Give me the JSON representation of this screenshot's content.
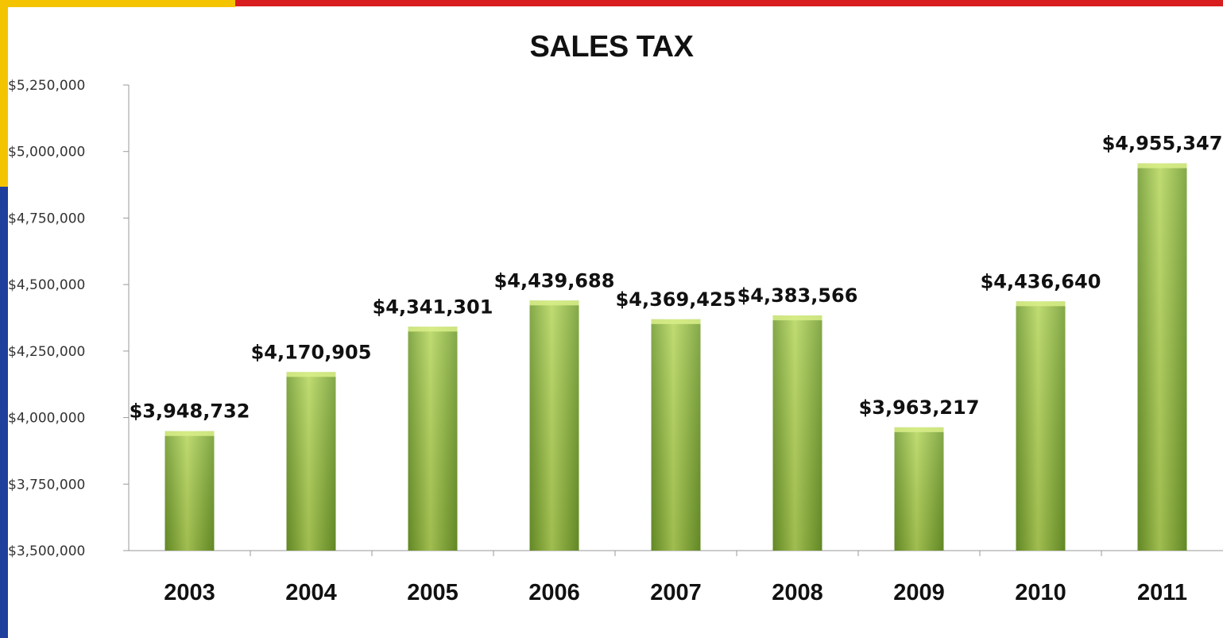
{
  "colors": {
    "frame_yellow": "#f5c400",
    "frame_red": "#d81e1e",
    "frame_blue": "#1f3f9c",
    "bar_light": "#b5d65a",
    "bar_dark": "#6f9a2a",
    "axis": "#9a9a9a"
  },
  "chart_data": {
    "type": "bar",
    "title": "SALES TAX",
    "xlabel": "",
    "ylabel": "",
    "categories": [
      "2003",
      "2004",
      "2005",
      "2006",
      "2007",
      "2008",
      "2009",
      "2010",
      "2011"
    ],
    "values": [
      3948732,
      4170905,
      4341301,
      4439688,
      4369425,
      4383566,
      3963217,
      4436640,
      4955347
    ],
    "data_labels": [
      "$3,948,732",
      "$4,170,905",
      "$4,341,301",
      "$4,439,688",
      "$4,369,425",
      "$4,383,566",
      "$3,963,217",
      "$4,436,640",
      "$4,955,347"
    ],
    "y_ticks": [
      3500000,
      3750000,
      4000000,
      4250000,
      4500000,
      4750000,
      5000000,
      5250000
    ],
    "y_tick_labels": [
      "$3,500,000",
      "$3,750,000",
      "$4,000,000",
      "$4,250,000",
      "$4,500,000",
      "$4,750,000",
      "$5,000,000",
      "$5,250,000"
    ],
    "ylim": [
      3500000,
      5250000
    ],
    "grid": false,
    "legend": "none"
  }
}
